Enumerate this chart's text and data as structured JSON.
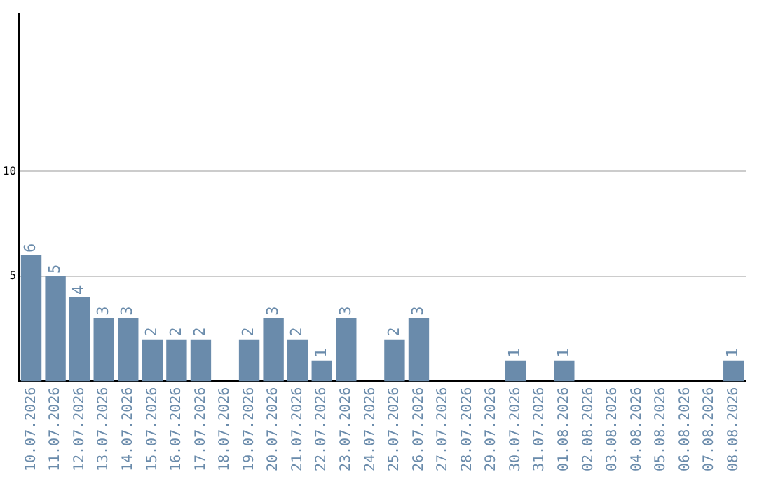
{
  "chart_data": {
    "type": "bar",
    "categories": [
      "10.07.2026",
      "11.07.2026",
      "12.07.2026",
      "13.07.2026",
      "14.07.2026",
      "15.07.2026",
      "16.07.2026",
      "17.07.2026",
      "18.07.2026",
      "19.07.2026",
      "20.07.2026",
      "21.07.2026",
      "22.07.2026",
      "23.07.2026",
      "24.07.2026",
      "25.07.2026",
      "26.07.2026",
      "27.07.2026",
      "28.07.2026",
      "29.07.2026",
      "30.07.2026",
      "31.07.2026",
      "01.08.2026",
      "02.08.2026",
      "03.08.2026",
      "04.08.2026",
      "05.08.2026",
      "06.08.2026",
      "07.08.2026",
      "08.08.2026"
    ],
    "values": [
      6,
      5,
      4,
      3,
      3,
      2,
      2,
      2,
      0,
      2,
      3,
      2,
      1,
      3,
      0,
      2,
      3,
      0,
      0,
      0,
      1,
      0,
      1,
      0,
      0,
      0,
      0,
      0,
      0,
      1
    ],
    "value_labels": [
      "6",
      "5",
      "4",
      "3",
      "3",
      "2",
      "2",
      "2",
      null,
      "2",
      "3",
      "2",
      "1",
      "3",
      null,
      "2",
      "3",
      null,
      null,
      null,
      "1",
      null,
      "1",
      null,
      null,
      null,
      null,
      null,
      null,
      "1"
    ],
    "color": "#6a8bab",
    "ylim": [
      0,
      17.5
    ],
    "yticks": [
      5,
      10
    ],
    "grid": "y",
    "legend": false
  }
}
